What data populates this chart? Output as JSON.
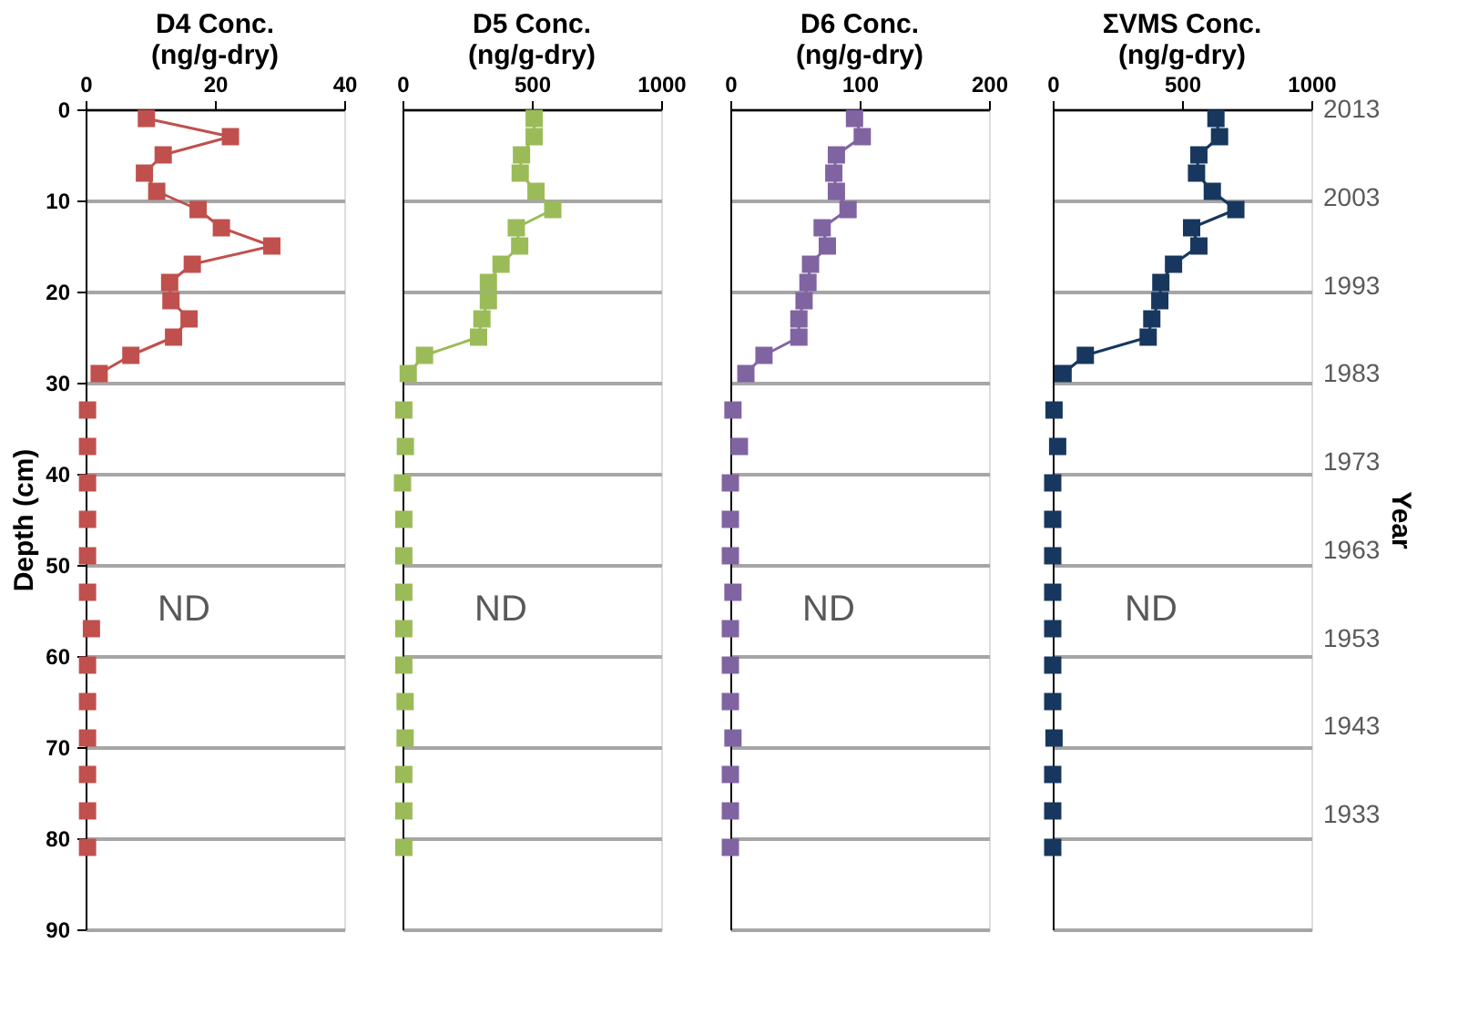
{
  "chart_data": [
    {
      "type": "line",
      "title": "D4 Conc. (ng/g-dry)",
      "ylabel": "Depth (cm)",
      "xlim": [
        0,
        40
      ],
      "xticks": [
        0,
        20,
        40
      ],
      "ylim": [
        90,
        0
      ],
      "yticks": [
        0,
        10,
        20,
        30,
        40,
        50,
        60,
        70,
        80,
        90
      ],
      "grid": "y",
      "marker": "square",
      "annotations": [
        "ND"
      ],
      "series": [
        {
          "color": "#c0504d",
          "x": [
            9.4,
            22.4,
            12,
            9.1,
            11,
            17.4,
            21,
            28.8,
            16.5,
            13,
            13.2,
            16,
            13.6,
            7,
            2.1
          ],
          "values": [
            1,
            3,
            5,
            7,
            9,
            11,
            13,
            15,
            17,
            19,
            21,
            23,
            25,
            27,
            29
          ]
        },
        {
          "type": "scatter",
          "color": "#c0504d",
          "x": [
            0.3,
            0.3,
            0.3,
            0.3,
            0.3,
            0.3,
            0.9,
            0.3,
            0.3,
            0.3,
            0.3,
            0.3,
            0.3
          ],
          "values": [
            33,
            37,
            41,
            45,
            49,
            53,
            57,
            61,
            65,
            69,
            73,
            77,
            81
          ]
        }
      ]
    },
    {
      "type": "line",
      "title": "D5 Conc. (ng/g-dry)",
      "xlim": [
        0,
        1000
      ],
      "xticks": [
        0,
        500,
        1000
      ],
      "ylim": [
        90,
        0
      ],
      "yticks": [
        0,
        10,
        20,
        30,
        40,
        50,
        60,
        70,
        80,
        90
      ],
      "grid": "y",
      "marker": "square",
      "tick_labels": "x",
      "annotations": [
        "ND"
      ],
      "series": [
        {
          "color": "#9bbb59",
          "x": [
            509,
            509,
            460,
            455,
            516,
            581,
            440,
            453,
            381,
            332,
            332,
            307,
            294,
            85,
            22
          ],
          "values": [
            1,
            3,
            5,
            7,
            9,
            11,
            13,
            15,
            17,
            19,
            21,
            23,
            25,
            27,
            29
          ]
        },
        {
          "type": "scatter",
          "color": "#9bbb59",
          "x": [
            5,
            11,
            0,
            5,
            5,
            5,
            5,
            5,
            10,
            10,
            5,
            5,
            5
          ],
          "values": [
            33,
            37,
            41,
            45,
            49,
            53,
            57,
            61,
            65,
            69,
            73,
            77,
            81
          ]
        }
      ]
    },
    {
      "type": "line",
      "title": "D6 Conc. (ng/g-dry)",
      "xlim": [
        0,
        200
      ],
      "xticks": [
        0,
        100,
        200
      ],
      "ylim": [
        90,
        0
      ],
      "yticks": [
        0,
        10,
        20,
        30,
        40,
        50,
        60,
        70,
        80,
        90
      ],
      "grid": "y",
      "marker": "square",
      "tick_labels": "x",
      "annotations": [
        "ND"
      ],
      "series": [
        {
          "color": "#8064a2",
          "x": [
            96,
            102,
            82,
            80,
            82,
            91,
            71,
            75,
            62,
            60,
            57,
            53,
            53,
            26,
            12
          ],
          "values": [
            1,
            3,
            5,
            7,
            9,
            11,
            13,
            15,
            17,
            19,
            21,
            23,
            25,
            27,
            29
          ]
        },
        {
          "type": "scatter",
          "color": "#8064a2",
          "x": [
            2,
            7,
            0,
            0,
            0,
            2,
            0,
            0,
            0,
            2,
            0,
            0,
            0
          ],
          "values": [
            33,
            37,
            41,
            45,
            49,
            53,
            57,
            61,
            65,
            69,
            73,
            77,
            81
          ]
        }
      ]
    },
    {
      "type": "line",
      "title": "ΣVMS Conc. (ng/g-dry)",
      "y2label": "Year",
      "xlim": [
        0,
        1000
      ],
      "xticks": [
        0,
        500,
        1000
      ],
      "ylim": [
        90,
        0
      ],
      "yticks": [
        0,
        10,
        20,
        30,
        40,
        50,
        60,
        70,
        80,
        90
      ],
      "y2lim": [
        1920,
        2013
      ],
      "y2ticks": [
        {
          "value": 2013,
          "label": "2013"
        },
        {
          "value": 2003,
          "label": "2003"
        },
        {
          "value": 1993,
          "label": "1993"
        },
        {
          "value": 1983,
          "label": "1983"
        },
        {
          "value": 1973,
          "label": "1973"
        },
        {
          "value": 1963,
          "label": "1963"
        },
        {
          "value": 1953,
          "label": "1953"
        },
        {
          "value": 1943,
          "label": "1943"
        },
        {
          "value": 1933,
          "label": "1933"
        }
      ],
      "grid": "y",
      "marker": "square",
      "tick_labels": "x",
      "annotations": [
        "ND"
      ],
      "series": [
        {
          "color": "#17375e",
          "x": [
            631,
            645,
            565,
            556,
            617,
            708,
            537,
            565,
            467,
            418,
            414,
            383,
            369,
            126,
            40
          ],
          "values": [
            1,
            3,
            5,
            7,
            9,
            11,
            13,
            15,
            17,
            19,
            21,
            23,
            25,
            27,
            29
          ]
        },
        {
          "type": "scatter",
          "color": "#17375e",
          "x": [
            5,
            19,
            0,
            0,
            0,
            0,
            0,
            0,
            0,
            5,
            0,
            0,
            0
          ],
          "values": [
            33,
            37,
            41,
            45,
            49,
            53,
            57,
            61,
            65,
            69,
            73,
            77,
            81
          ]
        }
      ]
    }
  ]
}
